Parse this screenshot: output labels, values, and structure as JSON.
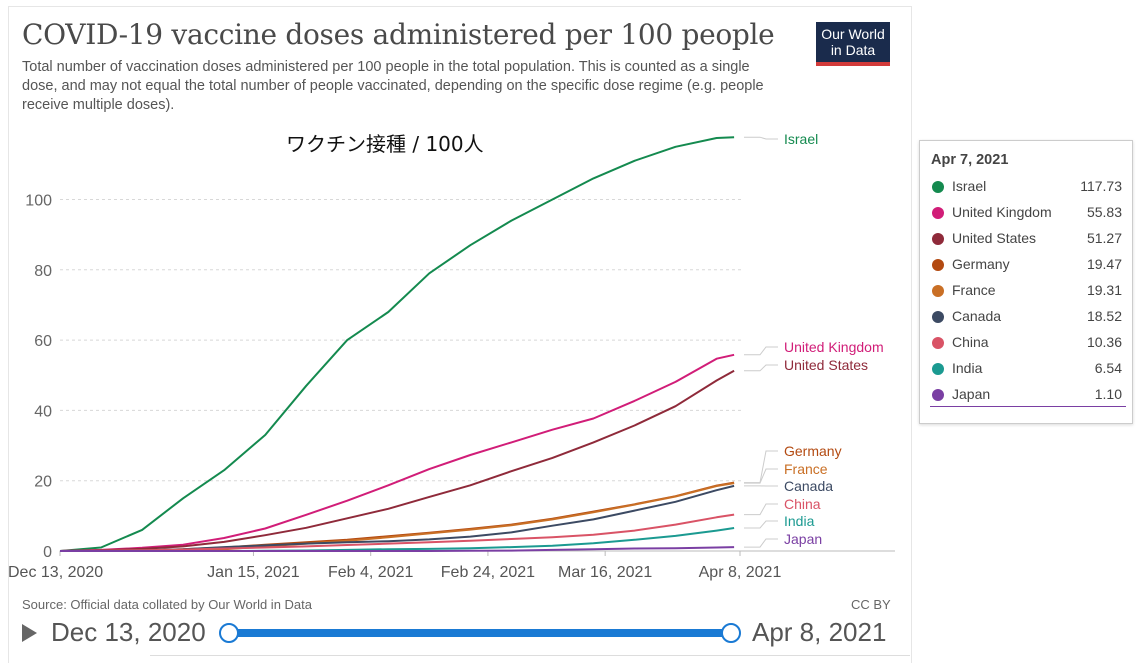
{
  "header": {
    "title": "COVID-19 vaccine doses administered per 100 people",
    "subtitle": "Total number of vaccination doses administered per 100 people in the total population. This is counted as a single dose, and may not equal the total number of people vaccinated, depending on the specific dose regime (e.g. people receive multiple doses).",
    "logo_line1": "Our World",
    "logo_line2": "in Data"
  },
  "chart_data": {
    "type": "line",
    "title": "COVID-19 vaccine doses administered per 100 people",
    "annotation": "ワクチン接種 / 100人",
    "xlabel": "",
    "ylabel": "",
    "xlim": [
      "2020-12-13",
      "2021-04-08"
    ],
    "ylim": [
      0,
      120
    ],
    "x_ticks": [
      "Dec 13, 2020",
      "Jan 15, 2021",
      "Feb 4, 2021",
      "Feb 24, 2021",
      "Mar 16, 2021",
      "Apr 8, 2021"
    ],
    "y_ticks": [
      "0",
      "20",
      "40",
      "60",
      "80",
      "100"
    ],
    "grid": "horizontal dashed",
    "legend": "right, labels at line ends",
    "x": [
      "2020-12-13",
      "2020-12-20",
      "2020-12-27",
      "2021-01-03",
      "2021-01-10",
      "2021-01-17",
      "2021-01-24",
      "2021-01-31",
      "2021-02-07",
      "2021-02-14",
      "2021-02-21",
      "2021-02-28",
      "2021-03-07",
      "2021-03-14",
      "2021-03-21",
      "2021-03-28",
      "2021-04-04",
      "2021-04-07"
    ],
    "series": [
      {
        "name": "Israel",
        "color": "#148a4f",
        "values": [
          0,
          1.0,
          6,
          15,
          23,
          33,
          47,
          60,
          68,
          79,
          87,
          94,
          100,
          106,
          111,
          115,
          117.5,
          117.73
        ]
      },
      {
        "name": "United Kingdom",
        "color": "#d11d78",
        "values": [
          0,
          0.3,
          0.9,
          1.8,
          3.7,
          6.4,
          10.3,
          14.3,
          18.7,
          23.3,
          27.3,
          30.9,
          34.5,
          37.7,
          42.7,
          48.1,
          54.7,
          55.83
        ]
      },
      {
        "name": "United States",
        "color": "#8f2a3a",
        "values": [
          0,
          0.2,
          0.6,
          1.3,
          2.6,
          4.5,
          6.6,
          9.3,
          12.0,
          15.4,
          18.7,
          22.7,
          26.5,
          30.9,
          35.7,
          41.2,
          48.5,
          51.27
        ]
      },
      {
        "name": "Germany",
        "color": "#b34a11",
        "values": [
          0,
          0,
          0.1,
          0.5,
          1.0,
          1.8,
          2.5,
          3.2,
          4.2,
          5.2,
          6.3,
          7.5,
          9.2,
          11.2,
          13.3,
          15.6,
          18.6,
          19.47
        ]
      },
      {
        "name": "France",
        "color": "#c96f25",
        "values": [
          0,
          0,
          0,
          0.1,
          0.5,
          1.3,
          2.1,
          2.9,
          3.9,
          5.0,
          6.1,
          7.3,
          9.0,
          11.0,
          13.2,
          15.5,
          18.5,
          19.31
        ]
      },
      {
        "name": "Canada",
        "color": "#3c4a63",
        "values": [
          0,
          0.05,
          0.2,
          0.5,
          1.1,
          1.6,
          2.1,
          2.5,
          2.8,
          3.3,
          4.1,
          5.3,
          7.2,
          9.0,
          11.5,
          14.0,
          17.3,
          18.52
        ]
      },
      {
        "name": "China",
        "color": "#d95366",
        "values": [
          0,
          0.1,
          0.2,
          0.4,
          0.7,
          1.0,
          1.3,
          1.7,
          2.1,
          2.5,
          2.9,
          3.4,
          3.9,
          4.6,
          5.8,
          7.5,
          9.6,
          10.36
        ]
      },
      {
        "name": "India",
        "color": "#1b9a91",
        "values": [
          0,
          0,
          0,
          0,
          0,
          0.05,
          0.15,
          0.3,
          0.5,
          0.6,
          0.8,
          1.1,
          1.5,
          2.2,
          3.2,
          4.3,
          5.8,
          6.54
        ]
      },
      {
        "name": "Japan",
        "color": "#7a3fa3",
        "values": [
          0,
          0,
          0,
          0,
          0,
          0,
          0,
          0,
          0,
          0.01,
          0.05,
          0.1,
          0.3,
          0.5,
          0.7,
          0.8,
          1.0,
          1.1
        ]
      }
    ]
  },
  "tooltip": {
    "date": "Apr 7, 2021",
    "rows": [
      {
        "name": "Israel",
        "value": "117.73",
        "color": "#148a4f"
      },
      {
        "name": "United Kingdom",
        "value": "55.83",
        "color": "#d11d78"
      },
      {
        "name": "United States",
        "value": "51.27",
        "color": "#8f2a3a"
      },
      {
        "name": "Germany",
        "value": "19.47",
        "color": "#b34a11"
      },
      {
        "name": "France",
        "value": "19.31",
        "color": "#c96f25"
      },
      {
        "name": "Canada",
        "value": "18.52",
        "color": "#3c4a63"
      },
      {
        "name": "China",
        "value": "10.36",
        "color": "#d95366"
      },
      {
        "name": "India",
        "value": "6.54",
        "color": "#1b9a91"
      },
      {
        "name": "Japan",
        "value": "1.10",
        "color": "#7a3fa3"
      }
    ]
  },
  "footer": {
    "source": "Source: Official data collated by Our World in Data",
    "license": "CC BY"
  },
  "timeline": {
    "start_label": "Dec 13, 2020",
    "end_label": "Apr 8, 2021",
    "play_icon": "play-icon"
  }
}
